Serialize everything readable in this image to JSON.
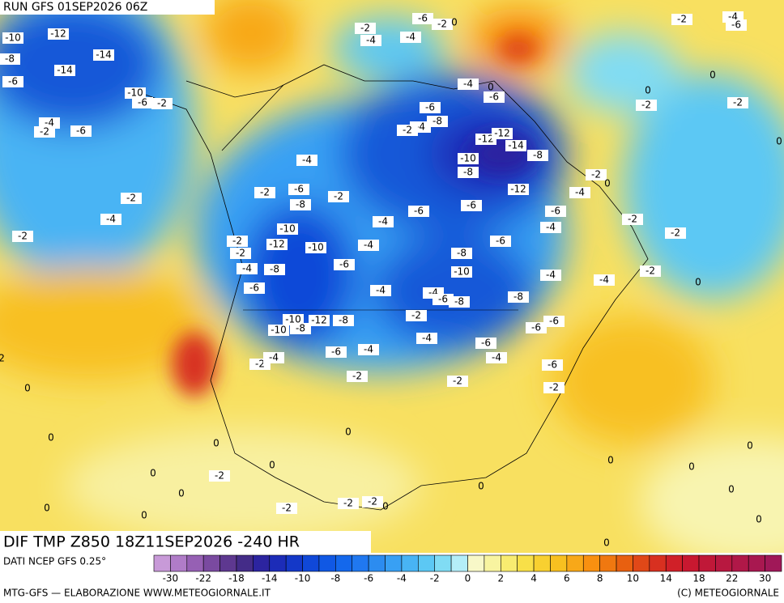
{
  "header": {
    "run": "RUN GFS 01SEP2026 06Z"
  },
  "footer": {
    "field": "DIF TMP Z850 18Z11SEP2026 -240 HR",
    "source": "DATI NCEP GFS 0.25°",
    "credit": "MTG-GFS — ELABORAZIONE WWW.METEOGIORNALE.IT",
    "copyright": "(C) METEOGIORNALE"
  },
  "colorbar": {
    "ticks": [
      -30,
      -22,
      -18,
      -14,
      -10,
      -8,
      -6,
      -4,
      -2,
      0,
      2,
      4,
      6,
      8,
      10,
      14,
      18,
      22,
      30
    ],
    "colors": [
      "#c89ad8",
      "#b07cc8",
      "#9660b4",
      "#7a4aa0",
      "#5e3890",
      "#442c88",
      "#2c24a0",
      "#1c2cb8",
      "#1438c8",
      "#1048d8",
      "#1058e4",
      "#1468ec",
      "#2078f0",
      "#2c8cf0",
      "#38a0f4",
      "#48b4f4",
      "#5cc8f4",
      "#80dcf4",
      "#b4eef8",
      "#f8f8c8",
      "#f8f4a0",
      "#f8ec70",
      "#f8e048",
      "#f8d030",
      "#f8c020",
      "#f8a818",
      "#f89010",
      "#f07810",
      "#e86010",
      "#e04818",
      "#d83020",
      "#d02028",
      "#c81830",
      "#c01838",
      "#b81840",
      "#b01848",
      "#a81850",
      "#a01858"
    ]
  },
  "contour_labels": [
    -10,
    -12,
    -8,
    -14,
    -6,
    -14,
    -10,
    -6,
    -2,
    -4,
    -2,
    -6,
    -2,
    -4,
    -2,
    -4,
    -2,
    -6,
    -8,
    -2,
    -10,
    -12,
    -10,
    -2,
    -2,
    -4,
    -8,
    -6,
    -6,
    -4,
    -4,
    -10,
    -12,
    -8,
    -10,
    -8,
    -2,
    -4,
    -6,
    -4,
    -2,
    -4,
    -4,
    -6,
    -8,
    -2,
    -4,
    -6,
    -4,
    -2,
    -10,
    -8,
    -6,
    -8,
    -6,
    -6,
    -6,
    -2,
    -4,
    -4,
    -6,
    -4,
    -2,
    0,
    -2,
    -2,
    -2,
    -4,
    0,
    -6,
    -6,
    -8,
    -10,
    -12,
    -12,
    -14,
    -8,
    -12,
    -8,
    -6,
    -4,
    -6,
    0,
    -4,
    -2,
    -2,
    -4,
    -4,
    -6,
    -2,
    0,
    -2,
    -4,
    -6,
    0,
    0,
    -2,
    -2,
    0,
    0,
    0,
    0,
    0,
    0,
    -2,
    0,
    0,
    0,
    0,
    -2,
    -2,
    -2,
    0,
    0,
    0,
    0,
    0,
    0,
    0,
    0,
    2
  ]
}
